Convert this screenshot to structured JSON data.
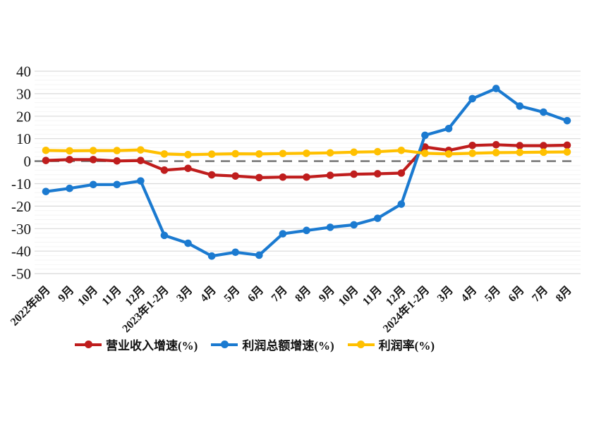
{
  "chart_data": {
    "type": "line",
    "title": "",
    "xlabel": "",
    "ylabel": "",
    "categories": [
      "2022年8月",
      "9月",
      "10月",
      "11月",
      "12月",
      "2023年1-2月",
      "3月",
      "4月",
      "5月",
      "6月",
      "7月",
      "8月",
      "9月",
      "10月",
      "11月",
      "12月",
      "2024年1-2月",
      "3月",
      "4月",
      "5月",
      "6月",
      "7月",
      "8月"
    ],
    "yticks": [
      40,
      30,
      20,
      10,
      0,
      -10,
      -20,
      -30,
      -40,
      -50
    ],
    "ylim": [
      -50,
      40
    ],
    "grid": "horizontal",
    "zero_line": "dashed",
    "legend_position": "bottom",
    "series": [
      {
        "id": "revenue-growth",
        "name": "营业收入增速(%)",
        "color": "#bf1d1d",
        "values": [
          0.3,
          0.7,
          0.7,
          0.1,
          0.3,
          -4.0,
          -3.2,
          -6.1,
          -6.6,
          -7.3,
          -7.1,
          -7.1,
          -6.3,
          -5.8,
          -5.6,
          -5.3,
          6.3,
          4.8,
          7.0,
          7.3,
          6.9,
          6.9,
          7.1
        ]
      },
      {
        "id": "profit-growth",
        "name": "利润总额增速(%)",
        "color": "#1b7ad0",
        "values": [
          -13.5,
          -12.1,
          -10.4,
          -10.4,
          -8.8,
          -33.0,
          -36.5,
          -42.2,
          -40.5,
          -41.8,
          -32.3,
          -30.8,
          -29.4,
          -28.3,
          -25.4,
          -19.1,
          11.5,
          14.5,
          27.8,
          32.3,
          24.5,
          21.8,
          18.0
        ]
      },
      {
        "id": "profit-margin",
        "name": "利润率(%)",
        "color": "#ffc000",
        "values": [
          4.8,
          4.6,
          4.7,
          4.7,
          5.0,
          3.2,
          2.9,
          3.1,
          3.3,
          3.2,
          3.4,
          3.5,
          3.7,
          4.0,
          4.2,
          4.8,
          3.5,
          3.2,
          3.5,
          3.8,
          3.9,
          4.0,
          4.1
        ]
      }
    ],
    "style": {
      "major_grid_color": "#d9d9d9",
      "minor_grid_color": "#f4f4f4",
      "zero_line_color": "#7a7a7a",
      "background": "#ffffff"
    }
  }
}
